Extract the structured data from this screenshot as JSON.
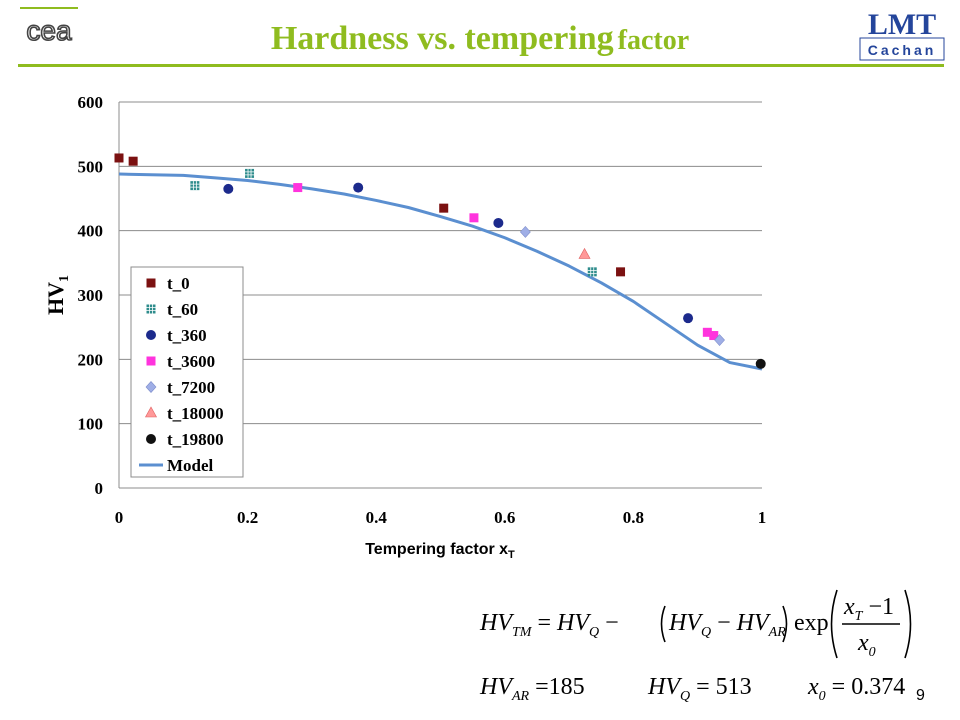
{
  "slide": {
    "title_main": "Hardness vs. tempering",
    "title_small": "factor",
    "page_number": "9",
    "accent_color": "#8fbc1f",
    "logos": [
      "cea-logo",
      "lmt-cachan-logo"
    ]
  },
  "logos": {
    "cea_text": "cea",
    "lmt_text": "LMT",
    "lmt_subtext": "Cachan"
  },
  "chart_data": {
    "type": "scatter",
    "title": "",
    "xlabel": "Tempering factor x",
    "xlabel_sub": "T",
    "ylabel": "HV",
    "ylabel_sub": "1",
    "xlim": [
      0,
      1
    ],
    "ylim": [
      0,
      600
    ],
    "x_ticks": [
      0,
      0.2,
      0.4,
      0.6,
      0.8,
      1
    ],
    "x_tick_labels": [
      "0",
      "0.2",
      "0.4",
      "0.6",
      "0.8",
      "1"
    ],
    "y_ticks": [
      0,
      100,
      200,
      300,
      400,
      500,
      600
    ],
    "y_tick_labels": [
      "0",
      "100",
      "200",
      "300",
      "400",
      "500",
      "600"
    ],
    "grid": "horizontal",
    "legend_position": "left-center",
    "series": [
      {
        "name": "t_0",
        "marker": "square",
        "color": "#7b1111",
        "x": [
          0.0,
          0.022,
          0.505,
          0.78
        ],
        "y": [
          513,
          508,
          435,
          336
        ]
      },
      {
        "name": "t_60",
        "marker": "hash-square",
        "color": "#2e8c8c",
        "x": [
          0.118,
          0.203,
          0.736
        ],
        "y": [
          470,
          489,
          336
        ]
      },
      {
        "name": "t_360",
        "marker": "circle",
        "color": "#1c2a8c",
        "x": [
          0.17,
          0.372,
          0.59,
          0.885
        ],
        "y": [
          465,
          467,
          412,
          264
        ]
      },
      {
        "name": "t_3600",
        "marker": "square",
        "color": "#ff33dd",
        "x": [
          0.278,
          0.552,
          0.915,
          0.925
        ],
        "y": [
          467,
          420,
          242,
          237
        ]
      },
      {
        "name": "t_7200",
        "marker": "diamond",
        "color": "#9faee6",
        "x": [
          0.632,
          0.934
        ],
        "y": [
          398,
          230
        ]
      },
      {
        "name": "t_18000",
        "marker": "triangle",
        "color": "#ff9999",
        "x": [
          0.724
        ],
        "y": [
          363
        ]
      },
      {
        "name": "t_19800",
        "marker": "circle",
        "color": "#111111",
        "x": [
          0.998
        ],
        "y": [
          193
        ]
      },
      {
        "name": "Model",
        "type": "line",
        "color": "#5b8fd0",
        "x": [
          0.0,
          0.05,
          0.1,
          0.15,
          0.2,
          0.25,
          0.3,
          0.35,
          0.4,
          0.45,
          0.5,
          0.55,
          0.6,
          0.65,
          0.7,
          0.75,
          0.8,
          0.85,
          0.9,
          0.95,
          1.0
        ],
        "y": [
          488,
          487,
          486,
          482,
          478,
          472,
          465,
          457,
          447,
          436,
          422,
          407,
          389,
          368,
          345,
          319,
          290,
          256,
          222,
          195,
          185
        ]
      }
    ]
  },
  "formula": {
    "line1": "HV_TM = HV_Q − (HV_Q − HV_AR) exp((x_T − 1) / x_0)",
    "hv_ar_value": "185",
    "hv_q_value": "513",
    "x0_value": "0.374"
  }
}
